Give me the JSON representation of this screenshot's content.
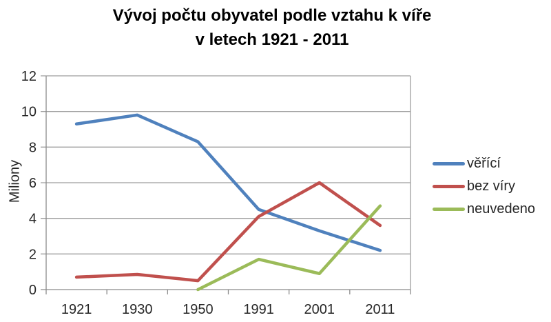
{
  "title": {
    "line1": "Vývoj počtu obyvatel podle vztahu k víře",
    "line2": "v letech 1921 - 2011"
  },
  "chart_data": {
    "type": "line",
    "title": "Vývoj počtu obyvatel podle vztahu k víře v letech 1921 - 2011",
    "categories": [
      "1921",
      "1930",
      "1950",
      "1991",
      "2001",
      "2011"
    ],
    "series": [
      {
        "name": "věřící",
        "color": "#4F81BD",
        "values": [
          9.3,
          9.8,
          8.3,
          4.5,
          3.3,
          2.2
        ]
      },
      {
        "name": "bez víry",
        "color": "#C0504D",
        "values": [
          0.7,
          0.85,
          0.5,
          4.1,
          6.0,
          3.6
        ]
      },
      {
        "name": "neuvedeno",
        "color": "#9BBB59",
        "values": [
          null,
          null,
          0,
          1.7,
          0.9,
          4.7
        ]
      }
    ],
    "xlabel": "",
    "ylabel": "Miliony",
    "ylim": [
      0,
      12
    ],
    "yticks": [
      0,
      2,
      4,
      6,
      8,
      10,
      12
    ],
    "grid": true,
    "legend_position": "right"
  },
  "style_colors": {
    "gridline": "#9d9d9d",
    "axis": "#8b8b8b",
    "tick_text": "#262626",
    "background": "#ffffff"
  }
}
